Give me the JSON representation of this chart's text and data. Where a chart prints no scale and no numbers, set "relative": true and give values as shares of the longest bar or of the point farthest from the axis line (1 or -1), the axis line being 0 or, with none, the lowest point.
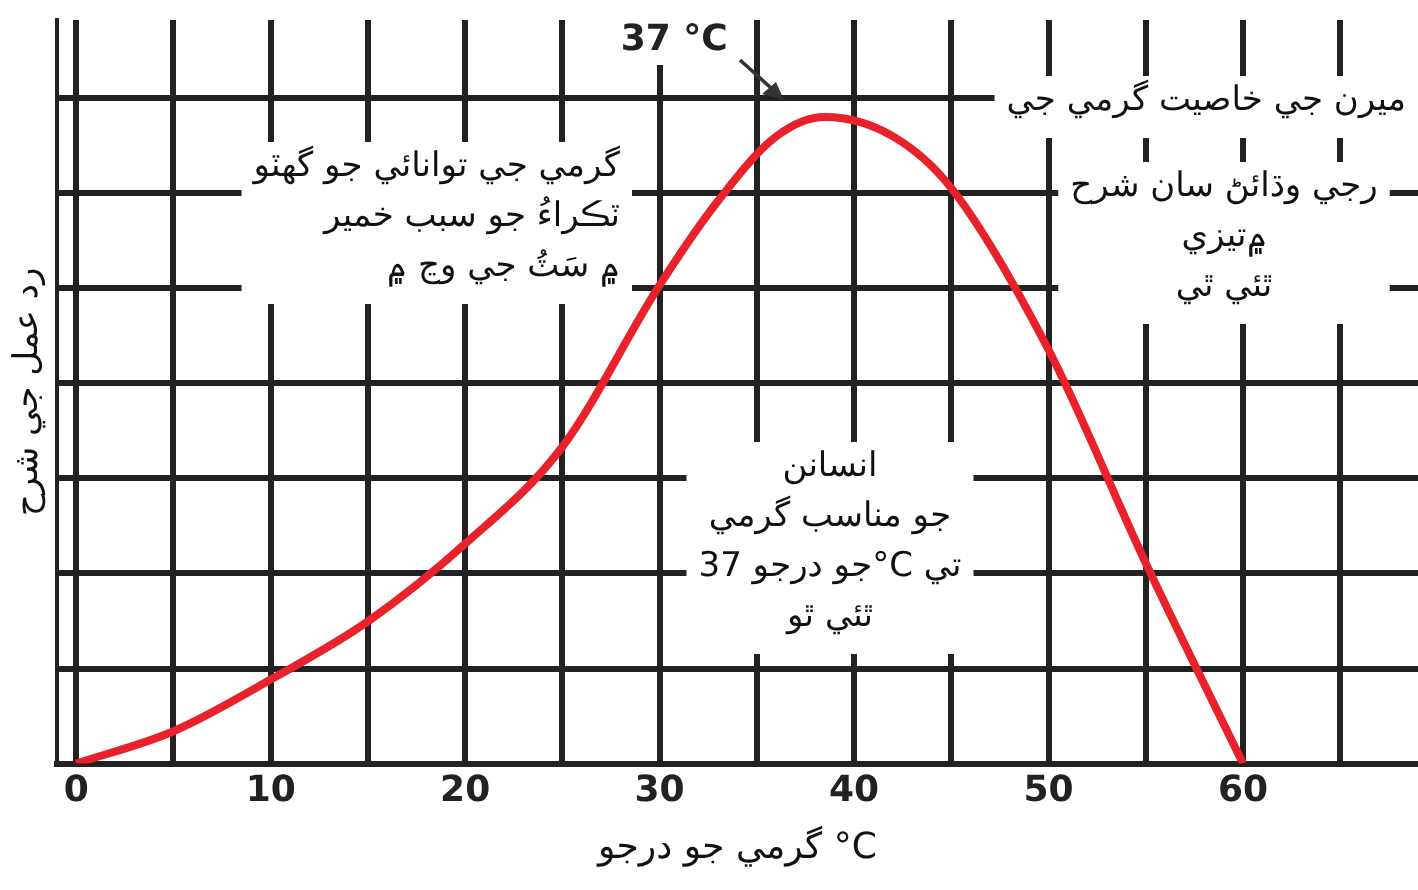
{
  "chart_data": {
    "type": "line",
    "relative": true,
    "xlabel": "گرمي جو درجو °C",
    "ylabel": "رد عمل جي شرح",
    "x": [
      0,
      5,
      10,
      15,
      20,
      25,
      30,
      33,
      36,
      38.5,
      42,
      45,
      50,
      55,
      60
    ],
    "series": [
      {
        "color": "#e8212b",
        "values": [
          0,
          0.05,
          0.13,
          0.22,
          0.34,
          0.49,
          0.74,
          0.87,
          0.97,
          1,
          0.97,
          0.89,
          0.64,
          0.31,
          0
        ]
      }
    ],
    "xlim": [
      -1,
      69
    ],
    "xticks": [
      0,
      {
        "value": 5,
        "label": null
      },
      10,
      {
        "value": 15,
        "label": null
      },
      20,
      {
        "value": 25,
        "label": null
      },
      30,
      {
        "value": 35,
        "label": null
      },
      40,
      {
        "value": 45,
        "label": null
      },
      50,
      {
        "value": 55,
        "label": null
      },
      60,
      {
        "value": 65,
        "label": null
      }
    ],
    "grid": true,
    "marker": "none",
    "line_style": "solid",
    "annotations": [
      {
        "text": "37 °C",
        "x": 37,
        "y": 1
      },
      "ميرن جي خاصيت گرمي جي",
      "گرمي جي توانائي جو گهٽو\nٽڪراءُ جو سبب خمير\n۾ سَٽُ جي وڃ ۾",
      "رجي وڌائڻ سان شرح\n۾تيزي\nٿئي ٿي",
      "انسانن\nجو مناسب گرمي\nجو درجو 37°C تي\nٿئي ٿو"
    ]
  }
}
